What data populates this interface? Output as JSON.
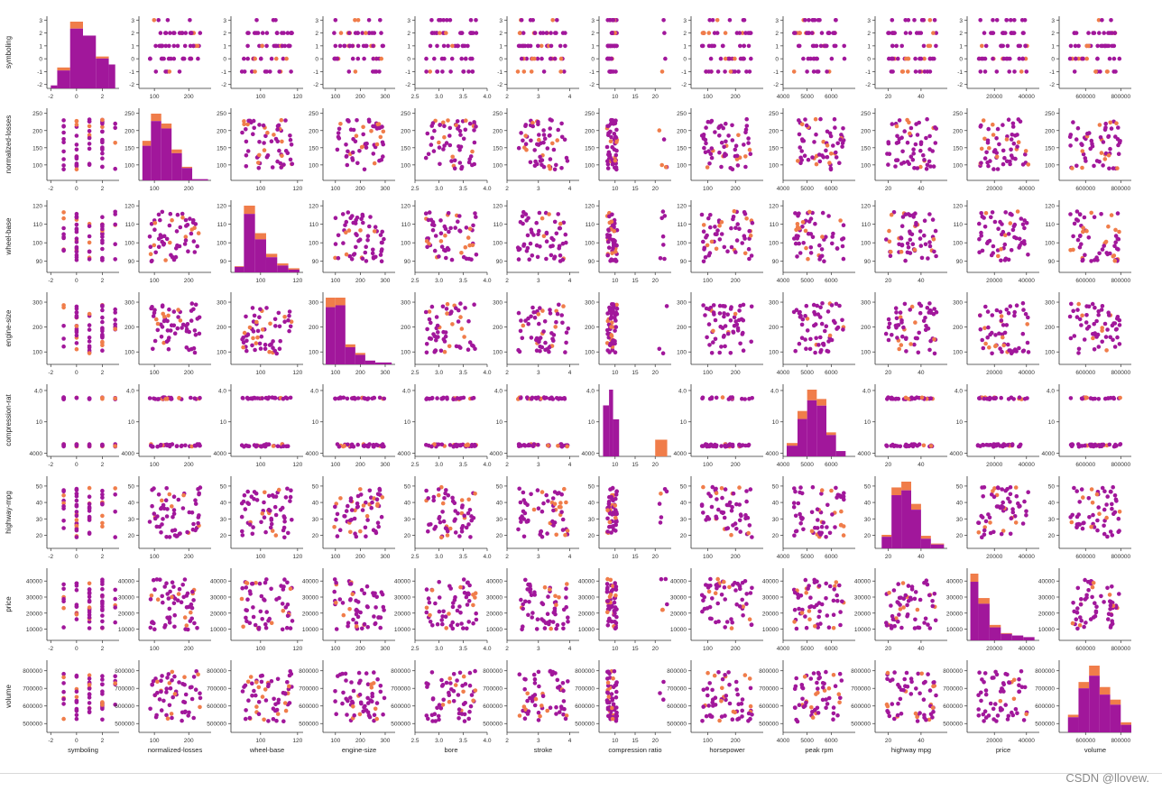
{
  "chart_data": {
    "type": "scatter",
    "variables": [
      {
        "name": "symboling",
        "xlabel": "symboling",
        "ylabel": "symboling",
        "lim": [
          -2.3,
          3.3
        ],
        "ticks": [
          -2,
          0,
          2
        ],
        "yticks": [
          -2,
          -1,
          0,
          1,
          2,
          3
        ],
        "tickLabels": [
          "-2",
          "0",
          "2"
        ],
        "ytickLabels": [
          "-2",
          "-1",
          "0",
          "1",
          "2",
          "3"
        ]
      },
      {
        "name": "normalized-losses",
        "xlabel": "normalized-losses",
        "ylabel": "normalized-losses",
        "lim": [
          55,
          265
        ],
        "ticks": [
          100,
          200
        ],
        "yticks": [
          100,
          150,
          200,
          250
        ],
        "tickLabels": [
          "100",
          "200"
        ],
        "ytickLabels": [
          "100",
          "150",
          "200",
          "250"
        ]
      },
      {
        "name": "wheel-base",
        "xlabel": "wheel-base",
        "ylabel": "wheel-base",
        "lim": [
          84,
          123
        ],
        "ticks": [
          100,
          120
        ],
        "yticks": [
          90,
          100,
          110,
          120
        ],
        "tickLabels": [
          "100",
          "120"
        ],
        "ytickLabels": [
          "90",
          "100",
          "110",
          "120"
        ]
      },
      {
        "name": "engine-size",
        "xlabel": "engine-size",
        "ylabel": "engine-size",
        "lim": [
          50,
          340
        ],
        "ticks": [
          100,
          200,
          300
        ],
        "yticks": [
          100,
          200,
          300
        ],
        "tickLabels": [
          "100",
          "200",
          "300"
        ],
        "ytickLabels": [
          "100",
          "200",
          "300"
        ]
      },
      {
        "name": "bore",
        "xlabel": "bore",
        "ylabel": "bore",
        "lim": [
          2.5,
          4.0
        ],
        "ticks": [
          2.5,
          3.0,
          3.5,
          4.0
        ],
        "yticks": [
          2.5,
          3.0,
          3.5,
          4.0
        ],
        "tickLabels": [
          "2.5",
          "3.0",
          "3.5",
          "4.0"
        ],
        "ytickLabels": [
          "2.5",
          "3.0",
          "3.5",
          "4.0"
        ]
      },
      {
        "name": "stroke",
        "xlabel": "stroke",
        "ylabel": "stroke",
        "lim": [
          2.0,
          4.3
        ],
        "ticks": [
          2,
          3,
          4
        ],
        "yticks": [
          2,
          3,
          4
        ],
        "tickLabels": [
          "2",
          "3",
          "4"
        ],
        "ytickLabels": [
          "2",
          "3",
          "4"
        ]
      },
      {
        "name": "compression-ratio",
        "xlabel": "compression ratio",
        "ylabel": "compression-rat",
        "lim": [
          6,
          24
        ],
        "ticks": [
          10,
          15,
          20
        ],
        "yticks": [
          4000,
          10,
          4.0
        ],
        "tickLabels": [
          "10",
          "15",
          "20"
        ],
        "ytickLabels": [
          "4000",
          "10",
          "4.0"
        ]
      },
      {
        "name": "horsepower",
        "xlabel": "horsepower",
        "ylabel": "horsepower",
        "lim": [
          40,
          300
        ],
        "ticks": [
          100,
          200
        ],
        "yticks": [
          100,
          200
        ],
        "tickLabels": [
          "100",
          "200"
        ],
        "ytickLabels": [
          "100",
          "200"
        ]
      },
      {
        "name": "peak-rpm",
        "xlabel": "peak rpm",
        "ylabel": "peak-rpm",
        "lim": [
          4000,
          7000
        ],
        "ticks": [
          4000,
          5000,
          6000
        ],
        "yticks": [
          4000,
          5000,
          6000
        ],
        "tickLabels": [
          "4000",
          "5000",
          "6000"
        ],
        "ytickLabels": [
          "4000",
          "5000",
          "6000"
        ]
      },
      {
        "name": "highway-mpg",
        "xlabel": "highway mpg",
        "ylabel": "highway-mpg",
        "lim": [
          12,
          56
        ],
        "ticks": [
          20,
          40
        ],
        "yticks": [
          20,
          30,
          40,
          50
        ],
        "tickLabels": [
          "20",
          "40"
        ],
        "ytickLabels": [
          "20",
          "30",
          "40",
          "50"
        ]
      },
      {
        "name": "price",
        "xlabel": "price",
        "ylabel": "price",
        "lim": [
          3000,
          48000
        ],
        "ticks": [
          20000,
          40000
        ],
        "yticks": [
          10000,
          20000,
          30000,
          40000
        ],
        "tickLabels": [
          "20000",
          "40000"
        ],
        "ytickLabels": [
          "10000",
          "20000",
          "30000",
          "40000"
        ]
      },
      {
        "name": "volume",
        "xlabel": "volume",
        "ylabel": "volume",
        "lim": [
          450000,
          860000
        ],
        "ticks": [
          600000,
          800000
        ],
        "yticks": [
          500000,
          600000,
          700000,
          800000
        ],
        "tickLabels": [
          "600000",
          "800000"
        ],
        "ytickLabels": [
          "500000",
          "600000",
          "700000",
          "800000"
        ]
      }
    ],
    "rows_shown": [
      "symboling",
      "normalized-losses",
      "wheel-base",
      "engine-size",
      "compression-ratio",
      "highway-mpg",
      "price",
      "volume"
    ],
    "row_ylabels": [
      "symboling",
      "normalized-losses",
      "wheel-base",
      "engine-size",
      "compression-rat",
      "highway-mpg",
      "price",
      "volume"
    ],
    "row_yticks": [
      {
        "values": [
          -2,
          -1,
          0,
          1,
          2,
          3
        ],
        "labels": [
          "-2",
          "-1",
          "0",
          "1",
          "2",
          "3"
        ],
        "lim": [
          -2.3,
          3.3
        ]
      },
      {
        "values": [
          100,
          150,
          200,
          250
        ],
        "labels": [
          "100",
          "150",
          "200",
          "250"
        ],
        "lim": [
          55,
          265
        ]
      },
      {
        "values": [
          90,
          100,
          110,
          120
        ],
        "labels": [
          "90",
          "100",
          "110",
          "120"
        ],
        "lim": [
          84,
          123
        ]
      },
      {
        "values": [
          100,
          200,
          300
        ],
        "labels": [
          "100",
          "200",
          "300"
        ],
        "lim": [
          50,
          340
        ]
      },
      {
        "values": [
          0,
          1,
          2
        ],
        "labels": [
          "4000",
          "10",
          "4.0"
        ],
        "lim": [
          -0.1,
          2.2
        ]
      },
      {
        "values": [
          20,
          30,
          40,
          50
        ],
        "labels": [
          "20",
          "30",
          "40",
          "50"
        ],
        "lim": [
          12,
          56
        ]
      },
      {
        "values": [
          10000,
          20000,
          30000,
          40000
        ],
        "labels": [
          "10000",
          "20000",
          "30000",
          "40000"
        ],
        "lim": [
          3000,
          48000
        ]
      },
      {
        "values": [
          500000,
          600000,
          700000,
          800000
        ],
        "labels": [
          "500000",
          "600000",
          "700000",
          "800000"
        ],
        "lim": [
          450000,
          860000
        ]
      }
    ],
    "diag_hist": {
      "symboling": {
        "bins": [
          [
            -2,
            -1.5,
            3,
            0
          ],
          [
            -1.5,
            -0.5,
            18,
            3
          ],
          [
            -0.5,
            0.5,
            60,
            7
          ],
          [
            0.5,
            1.5,
            53,
            0
          ],
          [
            1.5,
            2.5,
            30,
            2
          ],
          [
            2.5,
            3.0,
            24,
            0
          ]
        ]
      },
      "normalized-losses": {
        "bins": [
          [
            65,
            90,
            28,
            4
          ],
          [
            90,
            120,
            48,
            6
          ],
          [
            120,
            150,
            42,
            4
          ],
          [
            150,
            180,
            22,
            3
          ],
          [
            180,
            210,
            10,
            1
          ],
          [
            210,
            256,
            1,
            0
          ]
        ]
      },
      "wheel-base": {
        "bins": [
          [
            86,
            91,
            8,
            1
          ],
          [
            91,
            97,
            85,
            12
          ],
          [
            97,
            103,
            48,
            9
          ],
          [
            103,
            109,
            22,
            5
          ],
          [
            109,
            115,
            10,
            3
          ],
          [
            115,
            121,
            4,
            2
          ]
        ]
      },
      "engine-size": {
        "bins": [
          [
            61,
            100,
            60,
            10
          ],
          [
            100,
            140,
            62,
            8
          ],
          [
            140,
            180,
            18,
            3
          ],
          [
            180,
            220,
            10,
            2
          ],
          [
            220,
            260,
            4,
            0
          ],
          [
            260,
            326,
            2,
            0
          ]
        ]
      },
      "compression-ratio": {
        "bins": [
          [
            7,
            8.5,
            55,
            0
          ],
          [
            8.5,
            9.5,
            72,
            0
          ],
          [
            9.5,
            11,
            40,
            0
          ],
          [
            20,
            23,
            0,
            18
          ]
        ]
      },
      "highway-mpg": {
        "bins": [
          [
            16,
            22,
            12,
            2
          ],
          [
            22,
            28,
            55,
            8
          ],
          [
            28,
            34,
            60,
            9
          ],
          [
            34,
            40,
            40,
            6
          ],
          [
            40,
            46,
            10,
            3
          ],
          [
            46,
            54,
            4,
            1
          ]
        ]
      },
      "price": {
        "bins": [
          [
            5000,
            10000,
            72,
            10
          ],
          [
            10000,
            17000,
            45,
            7
          ],
          [
            17000,
            24000,
            16,
            3
          ],
          [
            24000,
            31000,
            8,
            1
          ],
          [
            31000,
            38000,
            6,
            0
          ],
          [
            38000,
            45000,
            4,
            0
          ]
        ]
      },
      "volume": {
        "bins": [
          [
            500000,
            560000,
            12,
            2
          ],
          [
            560000,
            620000,
            35,
            5
          ],
          [
            620000,
            680000,
            45,
            8
          ],
          [
            680000,
            740000,
            30,
            6
          ],
          [
            740000,
            800000,
            22,
            4
          ],
          [
            800000,
            860000,
            6,
            2
          ]
        ]
      }
    },
    "peakrpm_hist": {
      "bins": [
        [
          4150,
          4600,
          8,
          2
        ],
        [
          4600,
          5000,
          28,
          6
        ],
        [
          5000,
          5400,
          42,
          8
        ],
        [
          5400,
          5800,
          38,
          5
        ],
        [
          5800,
          6200,
          16,
          2
        ],
        [
          6200,
          6600,
          4,
          0
        ]
      ]
    },
    "hue_colors": {
      "gas": "#a1179b",
      "diesel": "#f07d4a"
    },
    "xlabels_bottom": [
      "symboling",
      "normalized-losses",
      "wheel-base",
      "engine-size",
      "bore",
      "stroke",
      "compression ratio",
      "horsepower",
      "peak rpm",
      "highway mpg",
      "price",
      "volume"
    ]
  },
  "watermark": "CSDN @llovew."
}
